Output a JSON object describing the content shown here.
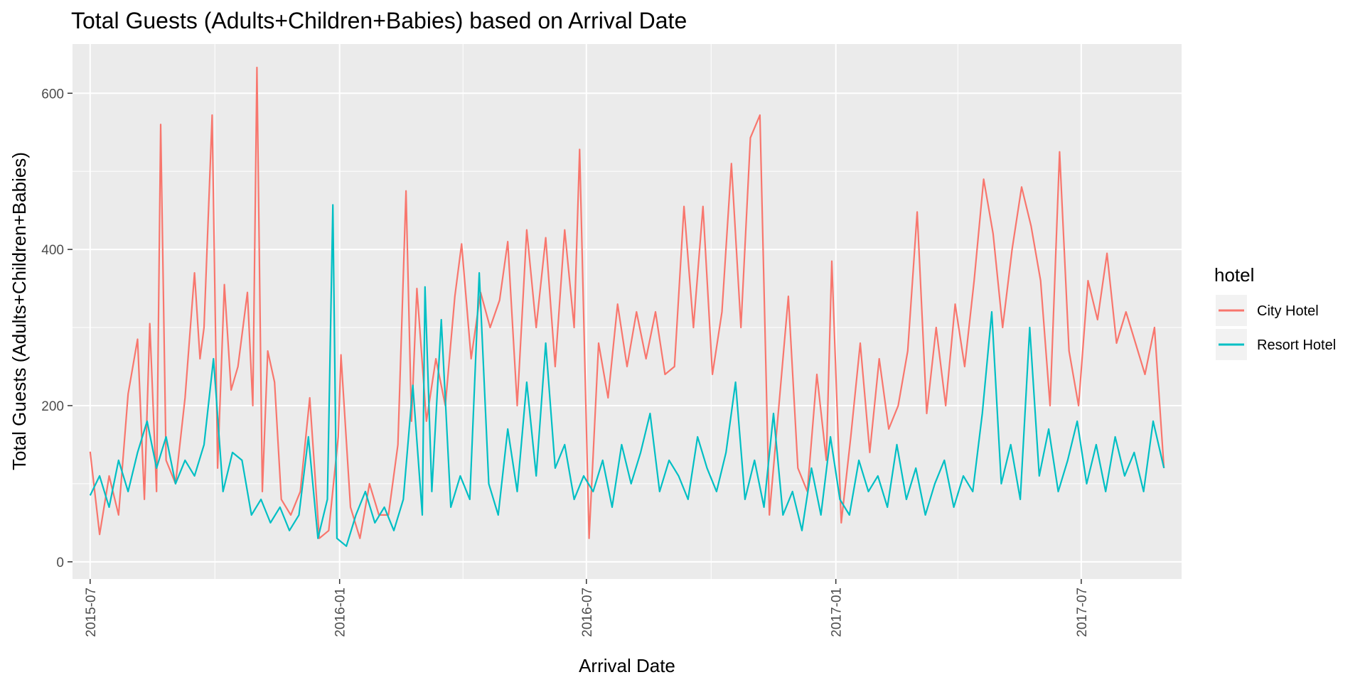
{
  "chart_data": {
    "type": "line",
    "title": "Total Guests (Adults+Children+Babies) based on Arrival Date",
    "xlabel": "Arrival Date",
    "ylabel": "Total Guests (Adults+Children+Babies)",
    "x_range": [
      "2015-06-18",
      "2017-09-13"
    ],
    "ylim": [
      -22,
      663
    ],
    "x_ticks": [
      "2015-07",
      "2016-01",
      "2016-07",
      "2017-01",
      "2017-07"
    ],
    "y_ticks": [
      0,
      200,
      400,
      600
    ],
    "grid": true,
    "legend": {
      "title": "hotel",
      "position": "right"
    },
    "series": [
      {
        "name": "City Hotel",
        "color": "#F8766D",
        "points": [
          [
            "2015-07-01",
            141
          ],
          [
            "2015-07-08",
            35
          ],
          [
            "2015-07-15",
            110
          ],
          [
            "2015-07-22",
            60
          ],
          [
            "2015-07-29",
            215
          ],
          [
            "2015-08-05",
            285
          ],
          [
            "2015-08-10",
            80
          ],
          [
            "2015-08-14",
            305
          ],
          [
            "2015-08-19",
            90
          ],
          [
            "2015-08-22",
            560
          ],
          [
            "2015-08-26",
            130
          ],
          [
            "2015-09-02",
            100
          ],
          [
            "2015-09-09",
            210
          ],
          [
            "2015-09-16",
            370
          ],
          [
            "2015-09-20",
            260
          ],
          [
            "2015-09-23",
            300
          ],
          [
            "2015-09-29",
            572
          ],
          [
            "2015-10-03",
            120
          ],
          [
            "2015-10-08",
            355
          ],
          [
            "2015-10-13",
            220
          ],
          [
            "2015-10-18",
            250
          ],
          [
            "2015-10-25",
            345
          ],
          [
            "2015-10-29",
            200
          ],
          [
            "2015-11-01",
            633
          ],
          [
            "2015-11-05",
            90
          ],
          [
            "2015-11-09",
            270
          ],
          [
            "2015-11-14",
            230
          ],
          [
            "2015-11-19",
            80
          ],
          [
            "2015-11-26",
            60
          ],
          [
            "2015-12-03",
            90
          ],
          [
            "2015-12-10",
            210
          ],
          [
            "2015-12-17",
            30
          ],
          [
            "2015-12-24",
            40
          ],
          [
            "2015-12-31",
            160
          ],
          [
            "2016-01-02",
            265
          ],
          [
            "2016-01-09",
            70
          ],
          [
            "2016-01-16",
            30
          ],
          [
            "2016-01-23",
            100
          ],
          [
            "2016-01-30",
            60
          ],
          [
            "2016-02-06",
            60
          ],
          [
            "2016-02-13",
            150
          ],
          [
            "2016-02-19",
            475
          ],
          [
            "2016-02-23",
            180
          ],
          [
            "2016-02-27",
            350
          ],
          [
            "2016-03-05",
            180
          ],
          [
            "2016-03-12",
            260
          ],
          [
            "2016-03-19",
            200
          ],
          [
            "2016-03-26",
            340
          ],
          [
            "2016-03-31",
            407
          ],
          [
            "2016-04-07",
            260
          ],
          [
            "2016-04-14",
            345
          ],
          [
            "2016-04-21",
            300
          ],
          [
            "2016-04-28",
            335
          ],
          [
            "2016-05-04",
            410
          ],
          [
            "2016-05-11",
            200
          ],
          [
            "2016-05-18",
            425
          ],
          [
            "2016-05-25",
            300
          ],
          [
            "2016-06-01",
            415
          ],
          [
            "2016-06-08",
            250
          ],
          [
            "2016-06-15",
            425
          ],
          [
            "2016-06-22",
            300
          ],
          [
            "2016-06-26",
            528
          ],
          [
            "2016-07-03",
            30
          ],
          [
            "2016-07-10",
            280
          ],
          [
            "2016-07-17",
            210
          ],
          [
            "2016-07-24",
            330
          ],
          [
            "2016-07-31",
            250
          ],
          [
            "2016-08-07",
            320
          ],
          [
            "2016-08-14",
            260
          ],
          [
            "2016-08-21",
            320
          ],
          [
            "2016-08-28",
            240
          ],
          [
            "2016-09-04",
            250
          ],
          [
            "2016-09-11",
            455
          ],
          [
            "2016-09-18",
            300
          ],
          [
            "2016-09-25",
            455
          ],
          [
            "2016-10-02",
            240
          ],
          [
            "2016-10-09",
            320
          ],
          [
            "2016-10-16",
            510
          ],
          [
            "2016-10-23",
            300
          ],
          [
            "2016-10-30",
            543
          ],
          [
            "2016-11-06",
            572
          ],
          [
            "2016-11-13",
            60
          ],
          [
            "2016-11-20",
            200
          ],
          [
            "2016-11-27",
            340
          ],
          [
            "2016-12-04",
            120
          ],
          [
            "2016-12-11",
            90
          ],
          [
            "2016-12-18",
            240
          ],
          [
            "2016-12-25",
            130
          ],
          [
            "2016-12-29",
            385
          ],
          [
            "2017-01-05",
            50
          ],
          [
            "2017-01-12",
            160
          ],
          [
            "2017-01-19",
            280
          ],
          [
            "2017-01-26",
            140
          ],
          [
            "2017-02-02",
            260
          ],
          [
            "2017-02-09",
            170
          ],
          [
            "2017-02-16",
            200
          ],
          [
            "2017-02-23",
            270
          ],
          [
            "2017-03-02",
            448
          ],
          [
            "2017-03-09",
            190
          ],
          [
            "2017-03-16",
            300
          ],
          [
            "2017-03-23",
            200
          ],
          [
            "2017-03-30",
            330
          ],
          [
            "2017-04-06",
            250
          ],
          [
            "2017-04-13",
            360
          ],
          [
            "2017-04-20",
            490
          ],
          [
            "2017-04-27",
            420
          ],
          [
            "2017-05-04",
            300
          ],
          [
            "2017-05-11",
            400
          ],
          [
            "2017-05-18",
            480
          ],
          [
            "2017-05-25",
            430
          ],
          [
            "2017-06-01",
            360
          ],
          [
            "2017-06-08",
            200
          ],
          [
            "2017-06-15",
            525
          ],
          [
            "2017-06-22",
            270
          ],
          [
            "2017-06-29",
            200
          ],
          [
            "2017-07-06",
            360
          ],
          [
            "2017-07-13",
            310
          ],
          [
            "2017-07-20",
            395
          ],
          [
            "2017-07-27",
            280
          ],
          [
            "2017-08-03",
            320
          ],
          [
            "2017-08-10",
            280
          ],
          [
            "2017-08-17",
            240
          ],
          [
            "2017-08-24",
            300
          ],
          [
            "2017-08-31",
            120
          ]
        ]
      },
      {
        "name": "Resort Hotel",
        "color": "#00BFC4",
        "points": [
          [
            "2015-07-01",
            85
          ],
          [
            "2015-07-08",
            110
          ],
          [
            "2015-07-15",
            70
          ],
          [
            "2015-07-22",
            130
          ],
          [
            "2015-07-29",
            90
          ],
          [
            "2015-08-05",
            140
          ],
          [
            "2015-08-12",
            180
          ],
          [
            "2015-08-19",
            120
          ],
          [
            "2015-08-26",
            160
          ],
          [
            "2015-09-02",
            100
          ],
          [
            "2015-09-09",
            130
          ],
          [
            "2015-09-16",
            110
          ],
          [
            "2015-09-23",
            150
          ],
          [
            "2015-09-30",
            260
          ],
          [
            "2015-10-07",
            90
          ],
          [
            "2015-10-14",
            140
          ],
          [
            "2015-10-21",
            130
          ],
          [
            "2015-10-28",
            60
          ],
          [
            "2015-11-04",
            80
          ],
          [
            "2015-11-11",
            50
          ],
          [
            "2015-11-18",
            70
          ],
          [
            "2015-11-25",
            40
          ],
          [
            "2015-12-02",
            60
          ],
          [
            "2015-12-09",
            160
          ],
          [
            "2015-12-16",
            30
          ],
          [
            "2015-12-23",
            80
          ],
          [
            "2015-12-27",
            457
          ],
          [
            "2015-12-30",
            30
          ],
          [
            "2016-01-06",
            20
          ],
          [
            "2016-01-13",
            60
          ],
          [
            "2016-01-20",
            90
          ],
          [
            "2016-01-27",
            50
          ],
          [
            "2016-02-03",
            70
          ],
          [
            "2016-02-10",
            40
          ],
          [
            "2016-02-17",
            80
          ],
          [
            "2016-02-24",
            226
          ],
          [
            "2016-03-02",
            60
          ],
          [
            "2016-03-04",
            352
          ],
          [
            "2016-03-09",
            90
          ],
          [
            "2016-03-16",
            310
          ],
          [
            "2016-03-23",
            70
          ],
          [
            "2016-03-30",
            110
          ],
          [
            "2016-04-06",
            80
          ],
          [
            "2016-04-13",
            370
          ],
          [
            "2016-04-20",
            100
          ],
          [
            "2016-04-27",
            60
          ],
          [
            "2016-05-04",
            170
          ],
          [
            "2016-05-11",
            90
          ],
          [
            "2016-05-18",
            230
          ],
          [
            "2016-05-25",
            110
          ],
          [
            "2016-06-01",
            280
          ],
          [
            "2016-06-08",
            120
          ],
          [
            "2016-06-15",
            150
          ],
          [
            "2016-06-22",
            80
          ],
          [
            "2016-06-29",
            110
          ],
          [
            "2016-07-06",
            90
          ],
          [
            "2016-07-13",
            130
          ],
          [
            "2016-07-20",
            70
          ],
          [
            "2016-07-27",
            150
          ],
          [
            "2016-08-03",
            100
          ],
          [
            "2016-08-10",
            140
          ],
          [
            "2016-08-17",
            190
          ],
          [
            "2016-08-24",
            90
          ],
          [
            "2016-08-31",
            130
          ],
          [
            "2016-09-07",
            110
          ],
          [
            "2016-09-14",
            80
          ],
          [
            "2016-09-21",
            160
          ],
          [
            "2016-09-28",
            120
          ],
          [
            "2016-10-05",
            90
          ],
          [
            "2016-10-12",
            140
          ],
          [
            "2016-10-19",
            230
          ],
          [
            "2016-10-26",
            80
          ],
          [
            "2016-11-02",
            130
          ],
          [
            "2016-11-09",
            70
          ],
          [
            "2016-11-16",
            190
          ],
          [
            "2016-11-23",
            60
          ],
          [
            "2016-11-30",
            90
          ],
          [
            "2016-12-07",
            40
          ],
          [
            "2016-12-14",
            120
          ],
          [
            "2016-12-21",
            60
          ],
          [
            "2016-12-28",
            160
          ],
          [
            "2017-01-04",
            80
          ],
          [
            "2017-01-11",
            60
          ],
          [
            "2017-01-18",
            130
          ],
          [
            "2017-01-25",
            90
          ],
          [
            "2017-02-01",
            110
          ],
          [
            "2017-02-08",
            70
          ],
          [
            "2017-02-15",
            150
          ],
          [
            "2017-02-22",
            80
          ],
          [
            "2017-03-01",
            120
          ],
          [
            "2017-03-08",
            60
          ],
          [
            "2017-03-15",
            100
          ],
          [
            "2017-03-22",
            130
          ],
          [
            "2017-03-29",
            70
          ],
          [
            "2017-04-05",
            110
          ],
          [
            "2017-04-12",
            90
          ],
          [
            "2017-04-19",
            190
          ],
          [
            "2017-04-26",
            320
          ],
          [
            "2017-05-03",
            100
          ],
          [
            "2017-05-10",
            150
          ],
          [
            "2017-05-17",
            80
          ],
          [
            "2017-05-24",
            300
          ],
          [
            "2017-05-31",
            110
          ],
          [
            "2017-06-07",
            170
          ],
          [
            "2017-06-14",
            90
          ],
          [
            "2017-06-21",
            130
          ],
          [
            "2017-06-28",
            180
          ],
          [
            "2017-07-05",
            100
          ],
          [
            "2017-07-12",
            150
          ],
          [
            "2017-07-19",
            90
          ],
          [
            "2017-07-26",
            160
          ],
          [
            "2017-08-02",
            110
          ],
          [
            "2017-08-09",
            140
          ],
          [
            "2017-08-16",
            90
          ],
          [
            "2017-08-23",
            180
          ],
          [
            "2017-08-31",
            120
          ]
        ]
      }
    ]
  }
}
